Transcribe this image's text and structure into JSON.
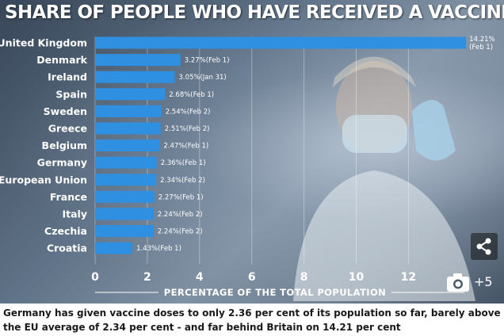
{
  "chart_data": {
    "type": "bar",
    "orientation": "horizontal",
    "title": "SHARE OF PEOPLE WHO HAVE RECEIVED A VACCINE DOSE",
    "xlabel": "PERCENTAGE OF THE TOTAL POPULATION",
    "ylabel": "",
    "xlim": [
      0,
      14.21
    ],
    "xticks": [
      0,
      2,
      4,
      6,
      8,
      10,
      12
    ],
    "grid": true,
    "categories": [
      "United Kingdom",
      "Denmark",
      "Ireland",
      "Spain",
      "Sweden",
      "Greece",
      "Belgium",
      "Germany",
      "European Union",
      "France",
      "Italy",
      "Czechia",
      "Croatia"
    ],
    "values": [
      14.21,
      3.27,
      3.05,
      2.68,
      2.54,
      2.51,
      2.47,
      2.36,
      2.34,
      2.27,
      2.24,
      2.24,
      1.43
    ],
    "value_labels": [
      "14.21%",
      "3.27%(Feb 1)",
      "3.05%(Jan 31)",
      "2.68%(Feb 1)",
      "2.54%(Feb 2)",
      "2.51%(Feb 2)",
      "2.47%(Feb 1)",
      "2.36%(Feb 1)",
      "2.34%(Feb 2)",
      "2.27%(Feb 1)",
      "2.24%(Feb 2)",
      "2.24%(Feb 2)",
      "1.43%(Feb 1)"
    ],
    "first_label_secondary": "(Feb 1)",
    "bar_color": "#2f8fe0"
  },
  "overlay": {
    "gallery_count": "+5",
    "share_icon": "share-icon",
    "camera_icon": "camera-icon"
  },
  "caption": "Germany has given vaccine doses to only 2.36 per cent of its population so far, barely above the EU average of 2.34 per cent - and far behind Britain on 14.21 per cent"
}
